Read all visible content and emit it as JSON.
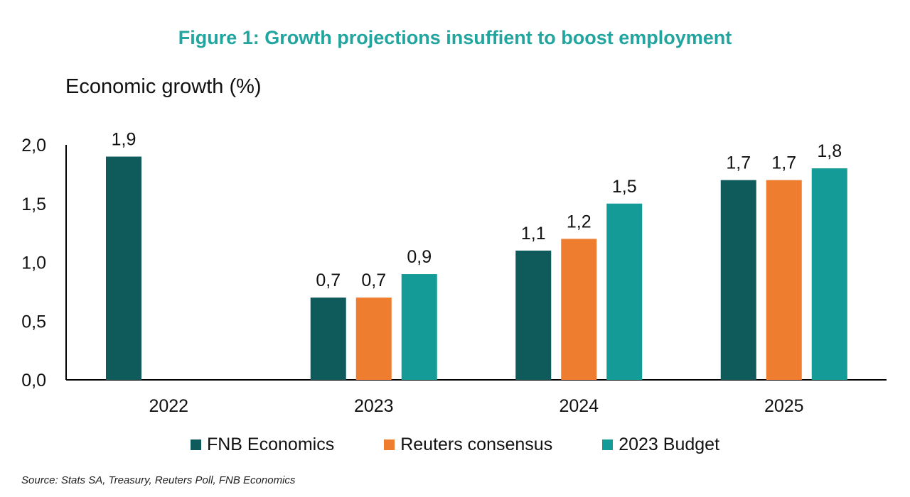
{
  "title": "Figure 1: Growth projections insuffient to boost employment",
  "colors": {
    "title": "#23a59f",
    "fnb": "#0f5a5a",
    "reuters": "#ee7d30",
    "budget": "#149b98",
    "axis": "#000000"
  },
  "source": "Source: Stats SA, Treasury, Reuters Poll, FNB Economics",
  "chart_data": {
    "type": "bar",
    "title": "Figure 1: Growth projections insuffient to boost employment",
    "ylabel": "Economic growth (%)",
    "xlabel": "",
    "categories": [
      "2022",
      "2023",
      "2024",
      "2025"
    ],
    "ylim": [
      0,
      2
    ],
    "yticks": [
      "0,0",
      "0,5",
      "1,0",
      "1,5",
      "2,0"
    ],
    "yticks_values": [
      0,
      0.5,
      1.0,
      1.5,
      2.0
    ],
    "legend_position": "bottom",
    "grid": false,
    "series": [
      {
        "name": "FNB Economics",
        "color": "#0f5a5a",
        "values": [
          1.9,
          0.7,
          1.1,
          1.7
        ],
        "labels": [
          "1,9",
          "0,7",
          "1,1",
          "1,7"
        ]
      },
      {
        "name": "Reuters consensus",
        "color": "#ee7d30",
        "values": [
          null,
          0.7,
          1.2,
          1.7
        ],
        "labels": [
          "",
          "0,7",
          "1,2",
          "1,7"
        ]
      },
      {
        "name": "2023 Budget",
        "color": "#149b98",
        "values": [
          null,
          0.9,
          1.5,
          1.8
        ],
        "labels": [
          "",
          "0,9",
          "1,5",
          "1,8"
        ]
      }
    ]
  }
}
